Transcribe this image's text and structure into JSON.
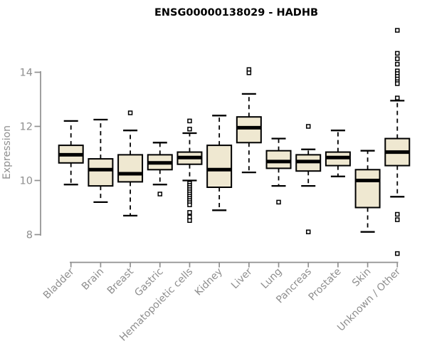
{
  "chart_data": {
    "type": "boxplot",
    "title": "ENSG00000138029 - HADHB",
    "ylabel": "Expression",
    "xlabel": "",
    "y_ticks": [
      8,
      10,
      12,
      14
    ],
    "ylim": [
      7.0,
      15.8
    ],
    "grid": false,
    "legend": false,
    "colors": {
      "background": "#ffffff",
      "box_fill": "#efe8d1",
      "box_stroke": "#000000",
      "median": "#000000",
      "whisker": "#000000",
      "outlier_stroke": "#000000",
      "axis": "#909090",
      "tick_label": "#8e8e8e",
      "title": "#000000"
    },
    "categories": [
      "Bladder",
      "Brain",
      "Breast",
      "Gastric",
      "Hematopoietic cells",
      "Kidney",
      "Liver",
      "Lung",
      "Pancreas",
      "Prostate",
      "Skin",
      "Unknown / Other"
    ],
    "series": [
      {
        "name": "Bladder",
        "whisker_low": 9.85,
        "q1": 10.65,
        "median": 10.95,
        "q3": 11.3,
        "whisker_high": 12.2,
        "outliers": []
      },
      {
        "name": "Brain",
        "whisker_low": 9.2,
        "q1": 9.8,
        "median": 10.4,
        "q3": 10.8,
        "whisker_high": 12.25,
        "outliers": []
      },
      {
        "name": "Breast",
        "whisker_low": 8.7,
        "q1": 9.95,
        "median": 10.25,
        "q3": 10.95,
        "whisker_high": 11.85,
        "outliers": [
          12.5
        ]
      },
      {
        "name": "Gastric",
        "whisker_low": 9.85,
        "q1": 10.4,
        "median": 10.65,
        "q3": 10.95,
        "whisker_high": 11.4,
        "outliers": [
          9.5
        ]
      },
      {
        "name": "Hematopoietic cells",
        "whisker_low": 10.0,
        "q1": 10.6,
        "median": 10.85,
        "q3": 11.05,
        "whisker_high": 11.75,
        "outliers": [
          12.2,
          11.9,
          9.9,
          9.82,
          9.74,
          9.66,
          9.58,
          9.5,
          9.42,
          9.34,
          9.26,
          9.18,
          9.1,
          8.82,
          8.65,
          8.52
        ]
      },
      {
        "name": "Kidney",
        "whisker_low": 8.9,
        "q1": 9.75,
        "median": 10.4,
        "q3": 11.3,
        "whisker_high": 12.4,
        "outliers": []
      },
      {
        "name": "Liver",
        "whisker_low": 10.3,
        "q1": 11.4,
        "median": 11.95,
        "q3": 12.35,
        "whisker_high": 13.2,
        "outliers": [
          14.1,
          13.98
        ]
      },
      {
        "name": "Lung",
        "whisker_low": 9.8,
        "q1": 10.45,
        "median": 10.7,
        "q3": 11.1,
        "whisker_high": 11.55,
        "outliers": [
          9.2
        ]
      },
      {
        "name": "Pancreas",
        "whisker_low": 9.8,
        "q1": 10.35,
        "median": 10.7,
        "q3": 10.95,
        "whisker_high": 11.15,
        "outliers": [
          12.0,
          8.1
        ]
      },
      {
        "name": "Prostate",
        "whisker_low": 10.15,
        "q1": 10.55,
        "median": 10.85,
        "q3": 11.05,
        "whisker_high": 11.85,
        "outliers": []
      },
      {
        "name": "Skin",
        "whisker_low": 8.1,
        "q1": 9.0,
        "median": 10.0,
        "q3": 10.4,
        "whisker_high": 11.1,
        "outliers": []
      },
      {
        "name": "Unknown / Other",
        "whisker_low": 9.4,
        "q1": 10.55,
        "median": 11.05,
        "q3": 11.55,
        "whisker_high": 12.95,
        "outliers": [
          15.55,
          14.7,
          14.5,
          14.3,
          14.05,
          13.95,
          13.85,
          13.75,
          13.65,
          13.58,
          13.05,
          8.75,
          8.55,
          7.3
        ]
      }
    ]
  }
}
